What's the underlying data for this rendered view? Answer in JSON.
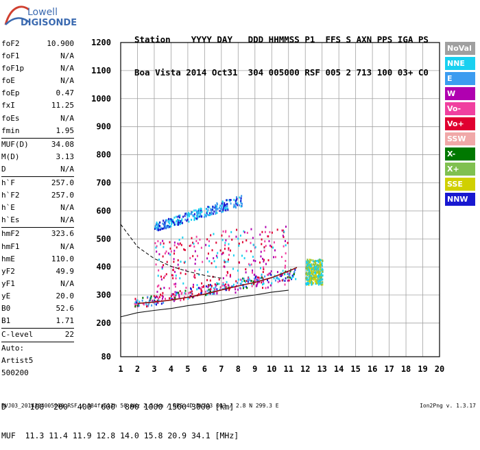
{
  "logo": {
    "top": "Lowell",
    "bottom": "DIGISONDE"
  },
  "header": {
    "labels": "Station    YYYY DAY   DDD HHMMSS P1  FFS S AXN PPS IGA PS",
    "values": "Boa Vista 2014 Oct31  304 005000 RSF 005 2 713 100 03+ C0"
  },
  "params": [
    [
      {
        "k": "foF2",
        "v": "10.900"
      },
      {
        "k": "foF1",
        "v": "N/A"
      },
      {
        "k": "foF1p",
        "v": "N/A"
      },
      {
        "k": "foE",
        "v": "N/A"
      },
      {
        "k": "foEp",
        "v": "0.47"
      },
      {
        "k": "fxI",
        "v": "11.25"
      },
      {
        "k": "foEs",
        "v": "N/A"
      },
      {
        "k": "fmin",
        "v": "1.95"
      }
    ],
    [
      {
        "k": "MUF(D)",
        "v": "34.08"
      },
      {
        "k": "M(D)",
        "v": "3.13"
      },
      {
        "k": "D",
        "v": "N/A"
      }
    ],
    [
      {
        "k": "h`F",
        "v": "257.0"
      },
      {
        "k": "h`F2",
        "v": "257.0"
      },
      {
        "k": "h`E",
        "v": "N/A"
      },
      {
        "k": "h`Es",
        "v": "N/A"
      }
    ],
    [
      {
        "k": "hmF2",
        "v": "323.6"
      },
      {
        "k": "hmF1",
        "v": "N/A"
      },
      {
        "k": "hmE",
        "v": "110.0"
      },
      {
        "k": "yF2",
        "v": "49.9"
      },
      {
        "k": "yF1",
        "v": "N/A"
      },
      {
        "k": "yE",
        "v": "20.0"
      },
      {
        "k": "B0",
        "v": "52.6"
      },
      {
        "k": "B1",
        "v": "1.71"
      }
    ],
    [
      {
        "k": "C-level",
        "v": "22"
      }
    ]
  ],
  "notes": [
    "Auto:",
    "Artist5",
    "500200"
  ],
  "legend": [
    {
      "label": "NoVal",
      "color": "#a0a0a0"
    },
    {
      "label": "NNE",
      "color": "#19d0f0"
    },
    {
      "label": "E",
      "color": "#3c9cf0"
    },
    {
      "label": "W",
      "color": "#b000b0"
    },
    {
      "label": "Vo-",
      "color": "#f040a0"
    },
    {
      "label": "Vo+",
      "color": "#e00030"
    },
    {
      "label": "SSW",
      "color": "#f0a8a8"
    },
    {
      "label": "X-",
      "color": "#007800"
    },
    {
      "label": "X+",
      "color": "#80c050"
    },
    {
      "label": "SSE",
      "color": "#d0d000"
    },
    {
      "label": "NNW",
      "color": "#1818d0"
    }
  ],
  "conversion": {
    "d_line": "D     100  200  400  600  800 1000 1500 3000 [km]",
    "muf_line": "MUF  11.3 11.4 11.9 12.8 14.0 15.8 20.9 34.1 [MHz]"
  },
  "footer": "BVJ03_2014304005000.RSF / 384fx512h 50 kHz 2.5 km / DPS-4D BVJ03 003 / 2.8 N 299.3 E",
  "version": "Ion2Png v. 1.3.17",
  "chart_data": {
    "type": "scatter",
    "title": "",
    "xlabel": "",
    "ylabel": "",
    "xlim": [
      1,
      20
    ],
    "ylim": [
      80,
      1200
    ],
    "x_ticks": [
      1,
      2,
      3,
      4,
      5,
      6,
      7,
      8,
      9,
      10,
      11,
      12,
      13,
      14,
      15,
      16,
      17,
      18,
      19,
      20
    ],
    "y_ticks": [
      80,
      200,
      300,
      400,
      500,
      600,
      700,
      800,
      900,
      1000,
      1100,
      1200
    ],
    "grid": true,
    "axis_color": "#000000",
    "grid_color": "#a0a0a0",
    "clusters": [
      {
        "region": "F-layer trace",
        "x": [
          1.8,
          11.4
        ],
        "y_start": [
          255,
          290
        ],
        "y_end": [
          360,
          400
        ],
        "colors": [
          "#19d0f0",
          "#3c9cf0",
          "#b000b0",
          "#f040a0",
          "#e00030",
          "#1818d0",
          "#007800"
        ]
      },
      {
        "region": "second hop",
        "x": [
          3,
          8.2
        ],
        "y_start": [
          530,
          560
        ],
        "y_end": [
          620,
          660
        ],
        "colors": [
          "#19d0f0",
          "#3c9cf0",
          "#1818d0"
        ]
      },
      {
        "region": "spread",
        "x": [
          3,
          11
        ],
        "y_start": [
          300,
          500
        ],
        "y_end": [
          320,
          560
        ],
        "colors": [
          "#b000b0",
          "#f040a0",
          "#e00030",
          "#19d0f0"
        ]
      },
      {
        "region": "high-frequency spread",
        "x": [
          12,
          13
        ],
        "y_start": [
          340,
          430
        ],
        "y_end": [
          340,
          430
        ],
        "colors": [
          "#d0d000",
          "#80c050",
          "#19d0f0"
        ]
      }
    ],
    "series": [
      {
        "style": "solid",
        "x": [
          1,
          2,
          3,
          4,
          5,
          6,
          7,
          8,
          9,
          10,
          11
        ],
        "y": [
          222,
          237,
          245,
          252,
          262,
          270,
          280,
          292,
          300,
          310,
          317
        ]
      },
      {
        "style": "dashed",
        "x": [
          1,
          2,
          3,
          4,
          5,
          6,
          7
        ],
        "y": [
          552,
          472,
          430,
          402,
          384,
          370,
          360
        ]
      },
      {
        "style": "trace",
        "x": [
          2,
          3,
          4,
          5,
          6,
          7,
          8,
          9,
          10,
          11,
          11.5
        ],
        "y": [
          270,
          275,
          282,
          292,
          303,
          318,
          332,
          345,
          362,
          385,
          398
        ]
      }
    ]
  }
}
